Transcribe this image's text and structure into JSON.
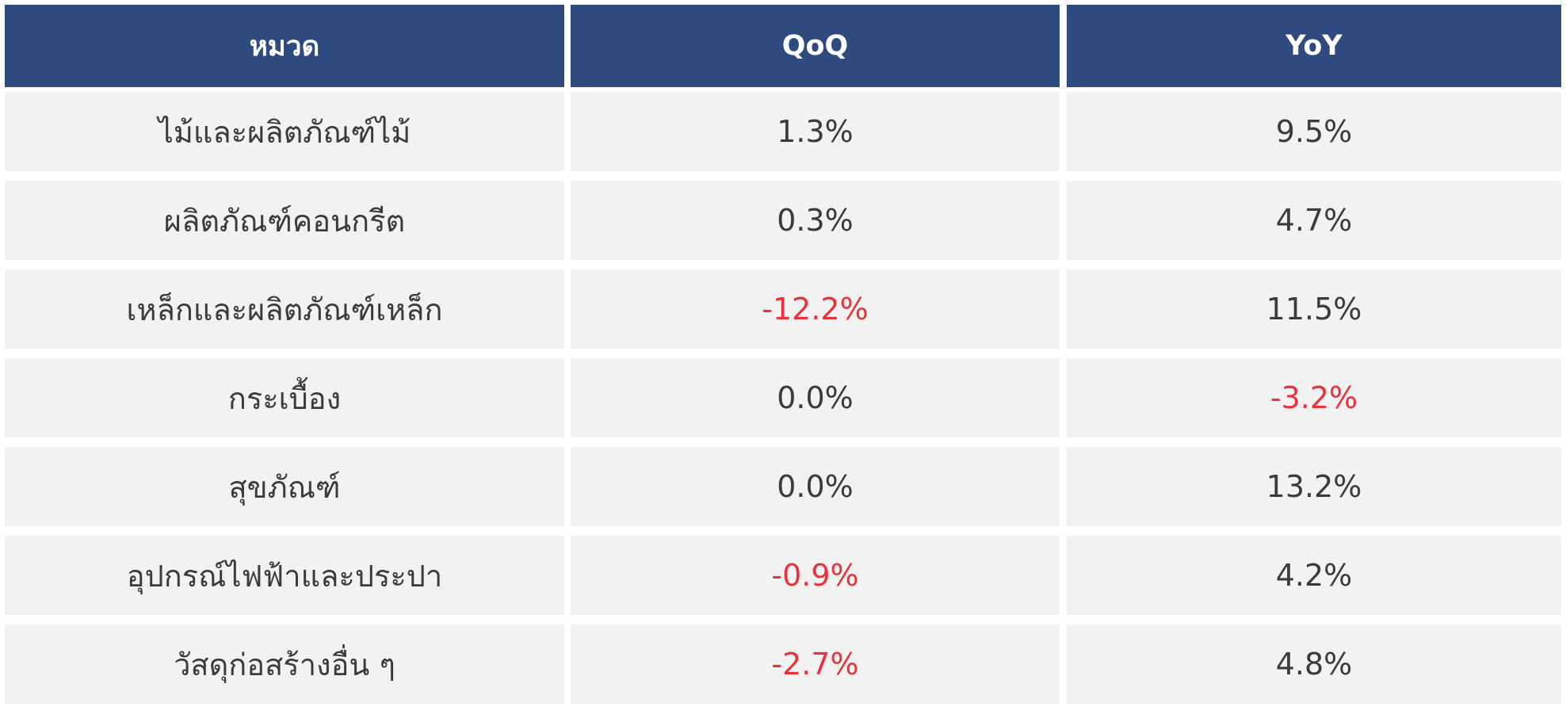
{
  "chart_data": {
    "type": "table",
    "columns": [
      "หมวด",
      "QoQ",
      "YoY"
    ],
    "rows": [
      {
        "category": "ไม้และผลิตภัณฑ์ไม้",
        "qoq": "1.3%",
        "yoy": "9.5%"
      },
      {
        "category": "ผลิตภัณฑ์คอนกรีต",
        "qoq": "0.3%",
        "yoy": "4.7%"
      },
      {
        "category": "เหล็กและผลิตภัณฑ์เหล็ก",
        "qoq": "-12.2%",
        "yoy": "11.5%"
      },
      {
        "category": "กระเบื้อง",
        "qoq": "0.0%",
        "yoy": "-3.2%"
      },
      {
        "category": "สุขภัณฑ์",
        "qoq": "0.0%",
        "yoy": "13.2%"
      },
      {
        "category": "อุปกรณ์ไฟฟ้าและประปา",
        "qoq": "-0.9%",
        "yoy": "4.2%"
      },
      {
        "category": "วัสดุก่อสร้างอื่น ๆ",
        "qoq": "-2.7%",
        "yoy": "4.8%"
      }
    ]
  },
  "colors": {
    "header_bg": "#2e4a7e",
    "header_text": "#ffffff",
    "cell_bg": "#f2f2f2",
    "cell_text": "#3b3b3b",
    "negative_text": "#e8323c"
  }
}
